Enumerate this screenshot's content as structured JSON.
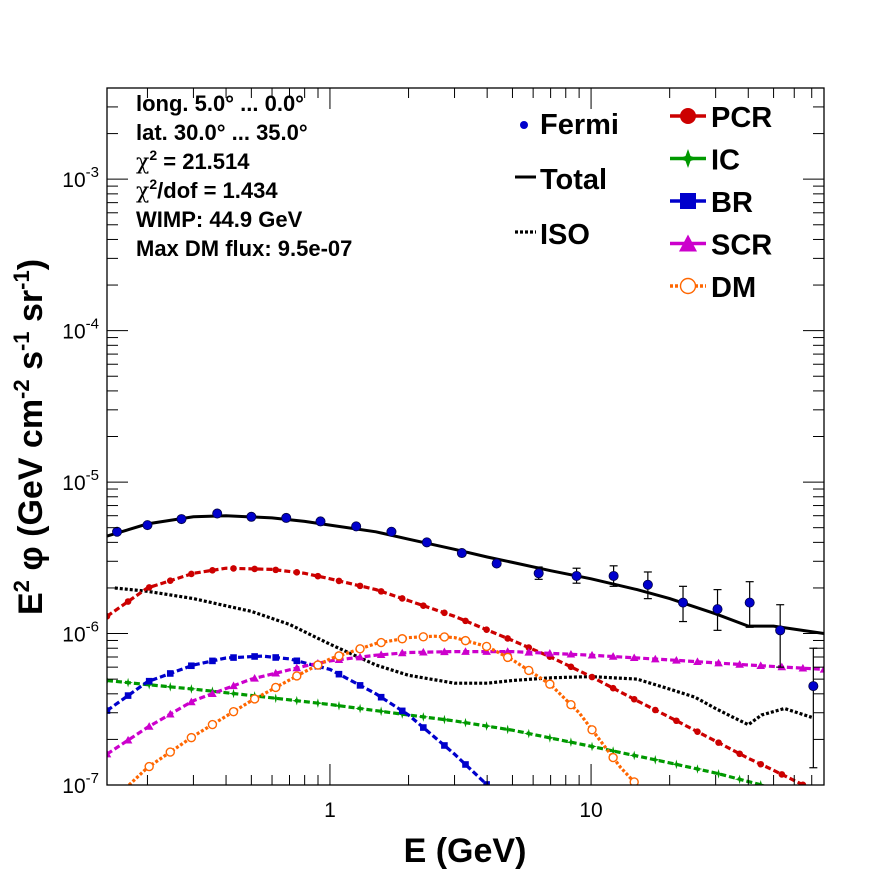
{
  "chart_data": {
    "type": "line",
    "xscale": "log",
    "yscale": "log",
    "xlim": [
      0.14,
      78
    ],
    "ylim": [
      1e-07,
      0.004
    ],
    "xlabel": "E (GeV)",
    "ylabel_parts": [
      "E",
      "2",
      " φ (GeV cm",
      "-2",
      " s",
      "-1",
      " sr",
      "-1",
      ")"
    ],
    "x_ticks": [
      {
        "v": 1,
        "label": "1"
      },
      {
        "v": 10,
        "label": "10"
      }
    ],
    "y_ticks": [
      {
        "v": 1e-07,
        "base": "10",
        "exp": "-7"
      },
      {
        "v": 1e-06,
        "base": "10",
        "exp": "-6"
      },
      {
        "v": 1e-05,
        "base": "10",
        "exp": "-5"
      },
      {
        "v": 0.0001,
        "base": "10",
        "exp": "-4"
      },
      {
        "v": 0.001,
        "base": "10",
        "exp": "-3"
      }
    ],
    "annotations": [
      {
        "type": "plain",
        "text": "long. 5.0° ... 0.0°"
      },
      {
        "type": "plain",
        "text": "lat. 30.0° ... 35.0°"
      },
      {
        "type": "chi",
        "symbol": "χ",
        "sup": "2",
        "text": " = 21.514"
      },
      {
        "type": "chi",
        "symbol": "χ",
        "sup": "2",
        "text": "/dof = 1.434"
      },
      {
        "type": "plain",
        "text": "WIMP: 44.9 GeV"
      },
      {
        "type": "plain",
        "text": "Max DM flux: 9.5e-07"
      }
    ],
    "legend_left": [
      {
        "name": "Fermi",
        "style": "points",
        "color": "#0000cc"
      },
      {
        "name": "Total",
        "style": "solid",
        "color": "#000000"
      },
      {
        "name": "ISO",
        "style": "dotted",
        "color": "#000000"
      }
    ],
    "legend_right": [
      {
        "name": "PCR",
        "color": "#cc0000",
        "marker": "circle"
      },
      {
        "name": "IC",
        "color": "#009900",
        "marker": "star"
      },
      {
        "name": "BR",
        "color": "#0000cc",
        "marker": "square"
      },
      {
        "name": "SCR",
        "color": "#cc00cc",
        "marker": "triangle"
      },
      {
        "name": "DM",
        "color": "#ff6600",
        "marker": "opencircle"
      }
    ],
    "fermi": {
      "x": [
        0.153,
        0.2,
        0.27,
        0.37,
        0.5,
        0.68,
        0.92,
        1.26,
        1.72,
        2.35,
        3.2,
        4.35,
        6.3,
        8.8,
        12.2,
        16.5,
        22.5,
        30.5,
        40.5,
        53,
        71
      ],
      "y": [
        4.7e-06,
        5.2e-06,
        5.7e-06,
        6.2e-06,
        5.9e-06,
        5.8e-06,
        5.5e-06,
        5.1e-06,
        4.7e-06,
        4e-06,
        3.4e-06,
        2.9e-06,
        2.5e-06,
        2.4e-06,
        2.4e-06,
        2.1e-06,
        1.6e-06,
        1.45e-06,
        1.6e-06,
        1.05e-06,
        4.5e-07
      ],
      "err_lo": [
        0,
        0,
        0,
        0,
        0,
        0,
        0,
        0,
        0,
        0,
        0,
        0,
        2.2e-07,
        2.5e-07,
        3.5e-07,
        4e-07,
        4e-07,
        4e-07,
        5e-07,
        4.5e-07,
        3.2e-07
      ],
      "err_hi": [
        0,
        0,
        0,
        0,
        0,
        0,
        0,
        0,
        0,
        0,
        0,
        0,
        2.5e-07,
        3e-07,
        4e-07,
        4.5e-07,
        4.5e-07,
        5e-07,
        6e-07,
        5e-07,
        3.5e-07
      ]
    },
    "series": [
      {
        "name": "Total",
        "color": "#000000",
        "style": "solid",
        "x": [
          0.14,
          0.2,
          0.3,
          0.4,
          0.6,
          0.8,
          1,
          1.5,
          2,
          3,
          4,
          5,
          7,
          10,
          15,
          20,
          30,
          40,
          50,
          78
        ],
        "y": [
          4.4e-06,
          5.3e-06,
          5.9e-06,
          6e-06,
          5.8e-06,
          5.5e-06,
          5.2e-06,
          4.7e-06,
          4.2e-06,
          3.6e-06,
          3.2e-06,
          2.95e-06,
          2.6e-06,
          2.3e-06,
          1.95e-06,
          1.7e-06,
          1.35e-06,
          1.12e-06,
          1.12e-06,
          1e-06
        ]
      },
      {
        "name": "ISO",
        "color": "#000000",
        "style": "dotted",
        "x": [
          0.15,
          0.2,
          0.3,
          0.5,
          0.7,
          1,
          1.5,
          2,
          3,
          4,
          5,
          7,
          10,
          15,
          20,
          25,
          30,
          35,
          40,
          45,
          55,
          70
        ],
        "y": [
          2e-06,
          1.9e-06,
          1.7e-06,
          1.4e-06,
          1.15e-06,
          8.5e-07,
          6.2e-07,
          5.3e-07,
          4.7e-07,
          4.7e-07,
          4.9e-07,
          5.1e-07,
          5.2e-07,
          5e-07,
          4.3e-07,
          3.8e-07,
          3.2e-07,
          2.8e-07,
          2.5e-07,
          2.9e-07,
          3.2e-07,
          2.8e-07
        ]
      },
      {
        "name": "PCR",
        "color": "#cc0000",
        "style": "dashed",
        "marker": "circle",
        "x": [
          0.14,
          0.2,
          0.3,
          0.4,
          0.6,
          0.8,
          1,
          1.5,
          2,
          3,
          5,
          7,
          10,
          15,
          20,
          30,
          40,
          50,
          65
        ],
        "y": [
          1.3e-06,
          2e-06,
          2.5e-06,
          2.7e-06,
          2.65e-06,
          2.5e-06,
          2.3e-06,
          1.95e-06,
          1.65e-06,
          1.3e-06,
          9e-07,
          7e-07,
          5.2e-07,
          3.6e-07,
          2.8e-07,
          1.95e-07,
          1.5e-07,
          1.25e-07,
          1e-07
        ]
      },
      {
        "name": "IC",
        "color": "#009900",
        "style": "dashed",
        "marker": "star",
        "x": [
          0.14,
          0.2,
          0.3,
          0.5,
          1,
          2,
          3,
          5,
          10,
          20,
          30,
          45
        ],
        "y": [
          4.9e-07,
          4.6e-07,
          4.3e-07,
          3.9e-07,
          3.4e-07,
          2.9e-07,
          2.65e-07,
          2.3e-07,
          1.8e-07,
          1.4e-07,
          1.2e-07,
          1e-07
        ]
      },
      {
        "name": "BR",
        "color": "#0000cc",
        "style": "dashed",
        "marker": "square",
        "x": [
          0.14,
          0.2,
          0.3,
          0.4,
          0.55,
          0.7,
          1,
          1.5,
          2,
          3,
          4
        ],
        "y": [
          3.1e-07,
          4.8e-07,
          6.2e-07,
          6.9e-07,
          7.1e-07,
          6.8e-07,
          5.8e-07,
          4e-07,
          2.9e-07,
          1.6e-07,
          1e-07
        ]
      },
      {
        "name": "SCR",
        "color": "#cc00cc",
        "style": "dashed",
        "marker": "triangle",
        "x": [
          0.14,
          0.2,
          0.3,
          0.5,
          0.8,
          1,
          1.5,
          2,
          3,
          5,
          10,
          20,
          40,
          78
        ],
        "y": [
          1.6e-07,
          2.4e-07,
          3.6e-07,
          5e-07,
          6.1e-07,
          6.6e-07,
          7.2e-07,
          7.5e-07,
          7.6e-07,
          7.6e-07,
          7.2e-07,
          6.7e-07,
          6.2e-07,
          5.8e-07
        ]
      },
      {
        "name": "DM",
        "color": "#ff6600",
        "style": "dotted",
        "marker": "opencircle",
        "x": [
          0.17,
          0.2,
          0.3,
          0.5,
          0.8,
          1,
          1.5,
          2,
          2.5,
          3,
          4,
          5,
          7,
          9,
          11,
          13,
          15
        ],
        "y": [
          1e-07,
          1.3e-07,
          2.1e-07,
          3.6e-07,
          5.6e-07,
          6.8e-07,
          8.6e-07,
          9.4e-07,
          9.6e-07,
          9.4e-07,
          8.2e-07,
          6.7e-07,
          4.6e-07,
          3e-07,
          1.9e-07,
          1.3e-07,
          1e-07
        ]
      }
    ]
  }
}
